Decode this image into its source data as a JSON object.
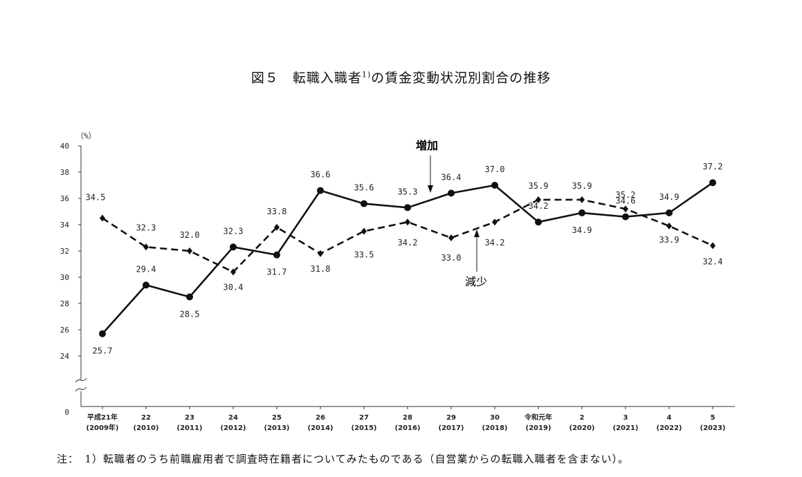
{
  "title": {
    "main": "図５　転職入職者",
    "sup": "1)",
    "rest": "の賃金変動状況別割合の推移"
  },
  "note": "注：　1）転職者のうち前職雇用者で調査時在籍者についてみたものである（自営業からの転職入職者を含まない）。",
  "chart_data": {
    "type": "line",
    "unit_label": "（%）",
    "y_ticks": [
      24,
      26,
      28,
      30,
      32,
      34,
      36,
      38,
      40
    ],
    "y_zero_label": "0",
    "ylim": [
      24,
      40
    ],
    "y_axis_break": true,
    "grid": false,
    "categories": [
      [
        "平成21年",
        "(2009年)"
      ],
      [
        "22",
        "(2010)"
      ],
      [
        "23",
        "(2011)"
      ],
      [
        "24",
        "(2012)"
      ],
      [
        "25",
        "(2013)"
      ],
      [
        "26",
        "(2014)"
      ],
      [
        "27",
        "(2015)"
      ],
      [
        "28",
        "(2016)"
      ],
      [
        "29",
        "(2017)"
      ],
      [
        "30",
        "(2018)"
      ],
      [
        "令和元年",
        "(2019)"
      ],
      [
        "2",
        "(2020)"
      ],
      [
        "3",
        "(2021)"
      ],
      [
        "4",
        "(2022)"
      ],
      [
        "5",
        "(2023)"
      ]
    ],
    "series": [
      {
        "name": "増加",
        "style": "solid",
        "marker": "circle",
        "color": "#111111",
        "values": [
          25.7,
          29.4,
          28.5,
          32.3,
          31.7,
          36.6,
          35.6,
          35.3,
          36.4,
          37.0,
          34.2,
          34.9,
          34.6,
          34.9,
          37.2
        ],
        "labels": [
          "25.7",
          "29.4",
          "28.5",
          "32.3",
          "31.7",
          "36.6",
          "35.6",
          "35.3",
          "36.4",
          "37.0",
          "34.2",
          "34.9",
          "34.6",
          "34.9",
          "37.2"
        ]
      },
      {
        "name": "減少",
        "style": "dashed",
        "marker": "diamond",
        "color": "#111111",
        "values": [
          34.5,
          32.3,
          32.0,
          30.4,
          33.8,
          31.8,
          33.5,
          34.2,
          33.0,
          34.2,
          35.9,
          35.9,
          35.2,
          33.9,
          32.4
        ],
        "labels": [
          "34.5",
          "32.3",
          "32.0",
          "30.4",
          "33.8",
          "31.8",
          "33.5",
          "34.2",
          "33.0",
          "34.2",
          "35.9",
          "35.9",
          "35.2",
          "33.9",
          "32.4"
        ]
      }
    ]
  }
}
